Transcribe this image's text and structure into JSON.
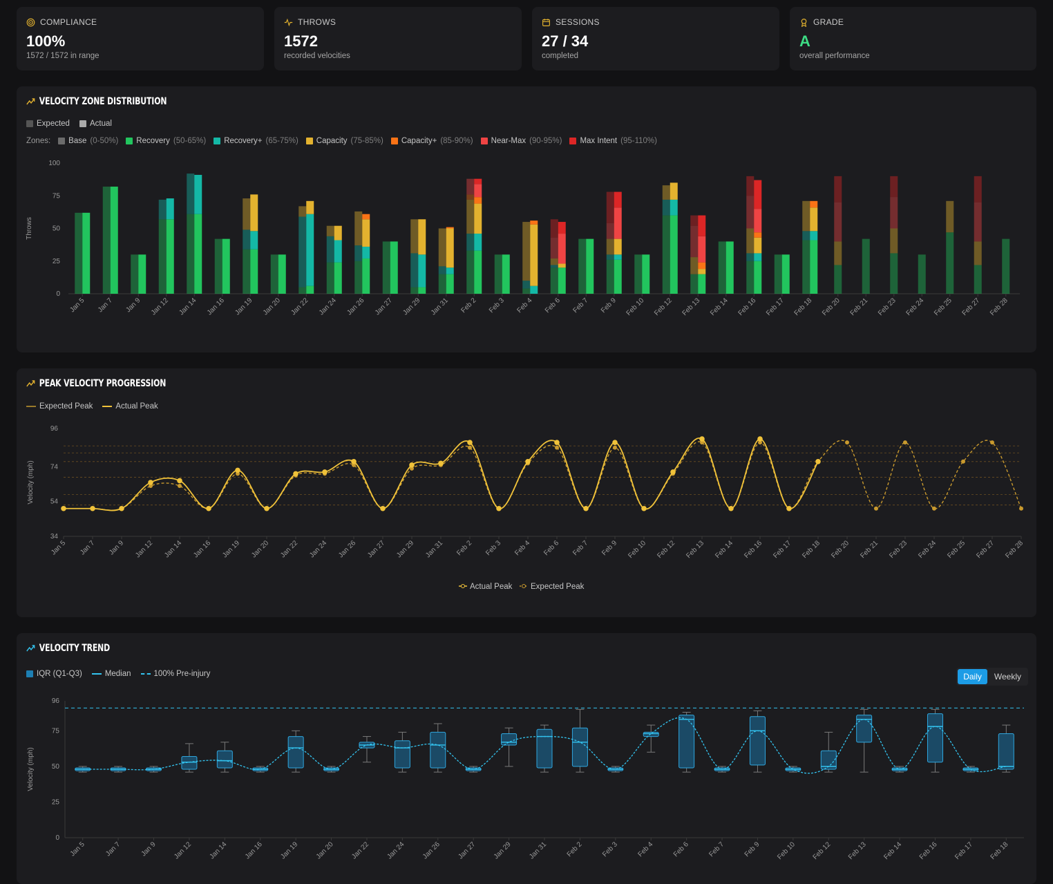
{
  "stats": [
    {
      "label": "COMPLIANCE",
      "value": "100%",
      "sub": "1572 / 1572 in range",
      "icon": "target-icon"
    },
    {
      "label": "THROWS",
      "value": "1572",
      "sub": "recorded velocities",
      "icon": "activity-icon"
    },
    {
      "label": "SESSIONS",
      "value": "27 / 34",
      "sub": "completed",
      "icon": "calendar-icon"
    },
    {
      "label": "GRADE",
      "value": "A",
      "sub": "overall performance",
      "icon": "award-icon",
      "value_color": "#3ddc84"
    }
  ],
  "zone_panel": {
    "title": "VELOCITY ZONE DISTRIBUTION",
    "legend_expected": "Expected",
    "legend_actual": "Actual",
    "zones_label": "Zones:",
    "zones": [
      {
        "name": "Base",
        "range": "(0-50%)",
        "color": "#6b6b6b"
      },
      {
        "name": "Recovery",
        "range": "(50-65%)",
        "color": "#22c55e"
      },
      {
        "name": "Recovery+",
        "range": "(65-75%)",
        "color": "#14b8a6"
      },
      {
        "name": "Capacity",
        "range": "(75-85%)",
        "color": "#e3b22f"
      },
      {
        "name": "Capacity+",
        "range": "(85-90%)",
        "color": "#f97316"
      },
      {
        "name": "Near-Max",
        "range": "(90-95%)",
        "color": "#ef4444"
      },
      {
        "name": "Max Intent",
        "range": "(95-110%)",
        "color": "#dc2626"
      }
    ]
  },
  "peak_panel": {
    "title": "PEAK VELOCITY PROGRESSION",
    "legend_expected": "Expected Peak",
    "legend_actual": "Actual Peak",
    "bottom_legend_actual": "Actual Peak",
    "bottom_legend_expected": "Expected Peak"
  },
  "trend_panel": {
    "title": "VELOCITY TREND",
    "legend_iqr": "IQR (Q1-Q3)",
    "legend_median": "Median",
    "legend_preinjury": "100% Pre-injury",
    "toggle_daily": "Daily",
    "toggle_weekly": "Weekly"
  },
  "chart_data": [
    {
      "type": "bar",
      "ylabel": "Throws",
      "ylim": [
        0,
        100
      ],
      "yticks": [
        0,
        25,
        50,
        75,
        100
      ],
      "categories": [
        "Jan 5",
        "Jan 7",
        "Jan 9",
        "Jan 12",
        "Jan 14",
        "Jan 16",
        "Jan 19",
        "Jan 20",
        "Jan 22",
        "Jan 24",
        "Jan 26",
        "Jan 27",
        "Jan 29",
        "Jan 31",
        "Feb 2",
        "Feb 3",
        "Feb 4",
        "Feb 6",
        "Feb 7",
        "Feb 9",
        "Feb 10",
        "Feb 12",
        "Feb 13",
        "Feb 14",
        "Feb 16",
        "Feb 17",
        "Feb 18",
        "Feb 20",
        "Feb 21",
        "Feb 23",
        "Feb 24",
        "Feb 25",
        "Feb 27",
        "Feb 28"
      ],
      "zone_order": [
        "Base",
        "Recovery",
        "Recovery+",
        "Capacity",
        "Capacity+",
        "Near-Max",
        "Max Intent"
      ],
      "expected": [
        [
          0,
          62,
          0,
          0,
          0,
          0,
          0
        ],
        [
          0,
          82,
          0,
          0,
          0,
          0,
          0
        ],
        [
          0,
          30,
          0,
          0,
          0,
          0,
          0
        ],
        [
          0,
          57,
          15,
          0,
          0,
          0,
          0
        ],
        [
          0,
          61,
          31,
          0,
          0,
          0,
          0
        ],
        [
          0,
          42,
          0,
          0,
          0,
          0,
          0
        ],
        [
          0,
          34,
          15,
          24,
          0,
          0,
          0
        ],
        [
          0,
          30,
          0,
          0,
          0,
          0,
          0
        ],
        [
          0,
          5,
          54,
          8,
          0,
          0,
          0
        ],
        [
          0,
          24,
          20,
          8,
          0,
          0,
          0
        ],
        [
          0,
          25,
          12,
          26,
          0,
          0,
          0
        ],
        [
          0,
          40,
          0,
          0,
          0,
          0,
          0
        ],
        [
          0,
          5,
          26,
          26,
          0,
          0,
          0
        ],
        [
          0,
          15,
          6,
          29,
          0,
          0,
          0
        ],
        [
          0,
          33,
          13,
          26,
          4,
          12,
          0
        ],
        [
          0,
          30,
          0,
          0,
          0,
          0,
          0
        ],
        [
          0,
          4,
          6,
          45,
          0,
          0,
          0
        ],
        [
          0,
          20,
          2,
          5,
          0,
          16,
          14
        ],
        [
          0,
          42,
          0,
          0,
          0,
          0,
          0
        ],
        [
          0,
          26,
          4,
          12,
          0,
          12,
          24
        ],
        [
          0,
          30,
          0,
          0,
          0,
          0,
          0
        ],
        [
          0,
          60,
          12,
          11,
          0,
          0,
          0
        ],
        [
          0,
          15,
          0,
          13,
          0,
          24,
          8
        ],
        [
          0,
          40,
          0,
          0,
          0,
          0,
          0
        ],
        [
          0,
          25,
          6,
          19,
          0,
          25,
          15
        ],
        [
          0,
          30,
          0,
          0,
          0,
          0,
          0
        ],
        [
          0,
          41,
          7,
          23,
          0,
          0,
          0
        ],
        [
          0,
          22,
          0,
          18,
          0,
          30,
          20
        ],
        [
          0,
          42,
          0,
          0,
          0,
          0,
          0
        ],
        [
          0,
          31,
          0,
          19,
          0,
          24,
          16
        ],
        [
          0,
          30,
          0,
          0,
          0,
          0,
          0
        ],
        [
          0,
          47,
          0,
          24,
          0,
          0,
          0
        ],
        [
          0,
          22,
          0,
          18,
          0,
          30,
          20
        ],
        [
          0,
          42,
          0,
          0,
          0,
          0,
          0
        ]
      ],
      "actual": [
        [
          0,
          62,
          0,
          0,
          0,
          0,
          0
        ],
        [
          0,
          82,
          0,
          0,
          0,
          0,
          0
        ],
        [
          0,
          30,
          0,
          0,
          0,
          0,
          0
        ],
        [
          0,
          57,
          16,
          0,
          0,
          0,
          0
        ],
        [
          0,
          61,
          30,
          0,
          0,
          0,
          0
        ],
        [
          0,
          42,
          0,
          0,
          0,
          0,
          0
        ],
        [
          0,
          34,
          14,
          28,
          0,
          0,
          0
        ],
        [
          0,
          30,
          0,
          0,
          0,
          0,
          0
        ],
        [
          0,
          6,
          55,
          10,
          0,
          0,
          0
        ],
        [
          0,
          24,
          17,
          11,
          0,
          0,
          0
        ],
        [
          0,
          27,
          9,
          21,
          4,
          0,
          0
        ],
        [
          0,
          40,
          0,
          0,
          0,
          0,
          0
        ],
        [
          0,
          5,
          25,
          27,
          0,
          0,
          0
        ],
        [
          0,
          15,
          5,
          30,
          1,
          0,
          0
        ],
        [
          0,
          33,
          13,
          23,
          5,
          10,
          4
        ],
        [
          0,
          30,
          0,
          0,
          0,
          0,
          0
        ],
        [
          0,
          0,
          6,
          47,
          3,
          0,
          0
        ],
        [
          0,
          20,
          0,
          3,
          0,
          23,
          9
        ],
        [
          0,
          42,
          0,
          0,
          0,
          0,
          0
        ],
        [
          0,
          26,
          4,
          12,
          0,
          24,
          12
        ],
        [
          0,
          30,
          0,
          0,
          0,
          0,
          0
        ],
        [
          0,
          60,
          12,
          13,
          0,
          0,
          0
        ],
        [
          0,
          15,
          0,
          4,
          5,
          20,
          16
        ],
        [
          0,
          40,
          0,
          0,
          0,
          0,
          0
        ],
        [
          0,
          25,
          6,
          12,
          4,
          18,
          22
        ],
        [
          0,
          30,
          0,
          0,
          0,
          0,
          0
        ],
        [
          0,
          41,
          7,
          18,
          5,
          0,
          0
        ],
        null,
        null,
        null,
        null,
        null,
        null,
        null
      ]
    },
    {
      "type": "line",
      "ylabel": "Velocity (mph)",
      "ylim": [
        34,
        96
      ],
      "yticks": [
        34,
        54,
        74,
        96
      ],
      "categories": [
        "Jan 5",
        "Jan 7",
        "Jan 9",
        "Jan 12",
        "Jan 14",
        "Jan 16",
        "Jan 19",
        "Jan 20",
        "Jan 22",
        "Jan 24",
        "Jan 26",
        "Jan 27",
        "Jan 29",
        "Jan 31",
        "Feb 2",
        "Feb 3",
        "Feb 4",
        "Feb 6",
        "Feb 7",
        "Feb 9",
        "Feb 10",
        "Feb 12",
        "Feb 13",
        "Feb 14",
        "Feb 16",
        "Feb 17",
        "Feb 18",
        "Feb 20",
        "Feb 21",
        "Feb 23",
        "Feb 24",
        "Feb 25",
        "Feb 27",
        "Feb 28"
      ],
      "series": [
        {
          "name": "Actual Peak",
          "values": [
            50,
            50,
            50,
            65,
            66,
            50,
            72,
            50,
            70,
            71,
            77,
            50,
            75,
            76,
            88,
            50,
            77,
            88,
            50,
            88,
            50,
            71,
            90,
            50,
            90,
            50,
            77,
            null,
            null,
            null,
            null,
            null,
            null,
            null
          ]
        },
        {
          "name": "Expected Peak",
          "values": [
            50,
            50,
            50,
            63,
            63,
            50,
            70,
            50,
            69,
            70,
            75,
            50,
            73,
            75,
            85,
            50,
            76,
            85,
            50,
            85,
            50,
            70,
            88,
            50,
            88,
            50,
            77,
            88,
            50,
            88,
            50,
            77,
            88,
            50
          ]
        }
      ],
      "reference_lines": [
        86,
        82,
        77,
        68,
        58,
        52
      ]
    },
    {
      "type": "box",
      "ylabel": "Velocity (mph)",
      "ylim": [
        0,
        96
      ],
      "yticks": [
        0,
        25,
        50,
        75,
        96
      ],
      "preinjury": 91,
      "categories": [
        "Jan 5",
        "Jan 7",
        "Jan 9",
        "Jan 12",
        "Jan 14",
        "Jan 16",
        "Jan 19",
        "Jan 20",
        "Jan 22",
        "Jan 24",
        "Jan 26",
        "Jan 27",
        "Jan 29",
        "Jan 31",
        "Feb 2",
        "Feb 3",
        "Feb 4",
        "Feb 6",
        "Feb 7",
        "Feb 9",
        "Feb 10",
        "Feb 12",
        "Feb 13",
        "Feb 14",
        "Feb 16",
        "Feb 17",
        "Feb 18"
      ],
      "boxes": [
        [
          46,
          47,
          48,
          49,
          50
        ],
        [
          46,
          47,
          48,
          49,
          50
        ],
        [
          46,
          47,
          48,
          49,
          50
        ],
        [
          46,
          48,
          53,
          57,
          66
        ],
        [
          46,
          49,
          54,
          61,
          67
        ],
        [
          46,
          47,
          48,
          49,
          50
        ],
        [
          46,
          49,
          63,
          71,
          75
        ],
        [
          46,
          47,
          48,
          49,
          50
        ],
        [
          53,
          63,
          65,
          67,
          71
        ],
        [
          46,
          49,
          63,
          68,
          74
        ],
        [
          46,
          49,
          65,
          74,
          80
        ],
        [
          46,
          47,
          48,
          49,
          50
        ],
        [
          50,
          65,
          67,
          73,
          77
        ],
        [
          46,
          49,
          71,
          76,
          79
        ],
        [
          46,
          50,
          67,
          77,
          90
        ],
        [
          46,
          47,
          48,
          49,
          50
        ],
        [
          60,
          71,
          73,
          74,
          79
        ],
        [
          46,
          49,
          83,
          86,
          88
        ],
        [
          46,
          47,
          48,
          49,
          50
        ],
        [
          46,
          51,
          75,
          85,
          89
        ],
        [
          46,
          47,
          48,
          49,
          50
        ],
        [
          46,
          48,
          50,
          61,
          74
        ],
        [
          46,
          67,
          83,
          86,
          90
        ],
        [
          46,
          47,
          48,
          49,
          50
        ],
        [
          46,
          53,
          78,
          87,
          90
        ],
        [
          46,
          47,
          48,
          49,
          50
        ],
        [
          46,
          48,
          50,
          73,
          79
        ]
      ]
    }
  ]
}
